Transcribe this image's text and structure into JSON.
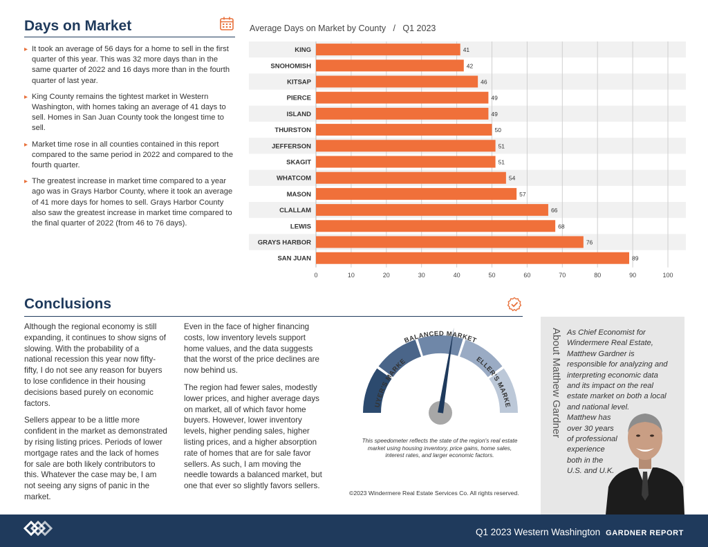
{
  "days_on_market": {
    "title": "Days on Market",
    "icon": "calendar-icon",
    "bullets": [
      "It took an average of 56 days for a home to sell in the first quarter of this year. This was 32 more days than in the same quarter of 2022 and 16 days more than in the fourth quarter of last year.",
      "King County remains the tightest market in Western Washington, with homes taking an average of 41 days to sell. Homes in San Juan County took the longest time to sell.",
      "Market time rose in all counties contained in this report compared to the same period in 2022 and compared to the fourth quarter.",
      "The greatest increase in market time compared to a year ago was in Grays Harbor County, where it took an average of 41 more days for homes to sell. Grays Harbor County also saw the greatest increase in market time compared to the final quarter of 2022 (from 46 to 76 days)."
    ]
  },
  "chart_data": {
    "type": "bar",
    "orientation": "horizontal",
    "title": "Average Days on Market by County",
    "subtitle": "Q1 2023",
    "categories": [
      "KING",
      "SNOHOMISH",
      "KITSAP",
      "PIERCE",
      "ISLAND",
      "THURSTON",
      "JEFFERSON",
      "SKAGIT",
      "WHATCOM",
      "MASON",
      "CLALLAM",
      "LEWIS",
      "GRAYS HARBOR",
      "SAN JUAN"
    ],
    "values": [
      41,
      42,
      46,
      49,
      49,
      50,
      51,
      51,
      54,
      57,
      66,
      68,
      76,
      89
    ],
    "xlim": [
      0,
      100
    ],
    "xticks": [
      0,
      10,
      20,
      30,
      40,
      50,
      60,
      70,
      80,
      90,
      100
    ],
    "grid": true,
    "bar_color": "#f0703a",
    "stripe_color": "#f1f1f1"
  },
  "conclusions": {
    "title": "Conclusions",
    "icon": "checkmark-badge-icon",
    "col1": [
      "Although the regional economy is still expanding, it continues to show signs of slowing. With the probability of a national recession this year now fifty-fifty, I do not see any reason for buyers to lose confidence in their housing decisions based purely on economic factors.",
      "Sellers appear to be a little more confident in the market as demonstrated by rising listing prices. Periods of lower mortgage rates and the lack of homes for sale are both likely contributors to this. Whatever the case may be, I am not seeing any signs of panic in the market."
    ],
    "col2": [
      "Even in the face of higher financing costs, low inventory levels support home values, and the data suggests that the worst of the price declines are now behind us.",
      "The region had fewer sales, modestly lower prices, and higher average days on market, all of which favor home buyers. However, lower inventory levels, higher pending sales, higher listing prices, and a higher absorption rate of homes that are for sale favor sellers. As such, I am moving the needle towards a balanced market, but one that ever so slightly favors sellers."
    ]
  },
  "gauge": {
    "labels": {
      "buyers": "BUYER'S MARKET",
      "balanced": "BALANCED MARKET",
      "sellers": "SELLER'S MARKET"
    },
    "needle_fraction": 0.55,
    "colors": [
      "#2c4a6e",
      "#4a6589",
      "#6f87a8",
      "#9aabc4",
      "#bcc8d8"
    ],
    "caption": "This speedometer reflects the state of the region's real estate market using housing inventory, price gains, home sales, interest rates, and larger economic factors.",
    "copyright": "©2023 Windermere Real Estate Services Co. All rights reserved."
  },
  "about": {
    "heading": "About Matthew Gardner",
    "lines": [
      "As Chief Economist for",
      "Windermere Real Estate,",
      "Matthew Gardner is",
      "responsible for analyzing and",
      "interpreting economic data",
      "and its impact on the real",
      "estate market on both a local",
      "and national level.",
      "Matthew has",
      "over 30 years",
      "of professional",
      "experience",
      "both in the",
      "U.S. and U.K."
    ]
  },
  "footer": {
    "logo": "windermere-logo",
    "text": "Q1 2023  Western Washington",
    "report": "GARDNER REPORT"
  }
}
